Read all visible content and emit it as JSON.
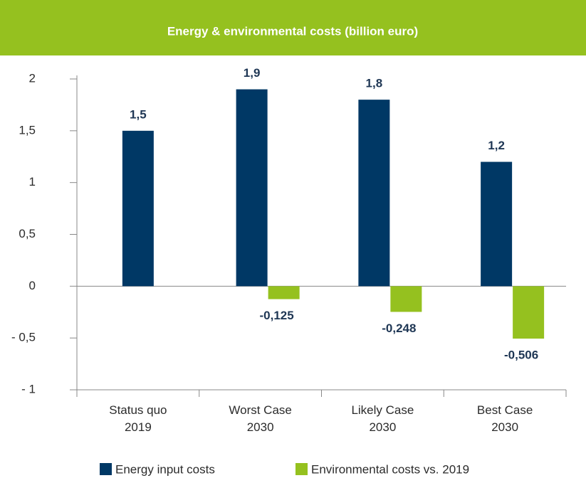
{
  "chart_data": {
    "type": "bar",
    "title": "Energy & environmental costs (billion euro)",
    "categories": [
      "Status quo\n2019",
      "Worst Case\n2030",
      "Likely Case\n2030",
      "Best Case\n2030"
    ],
    "series": [
      {
        "name": "Energy input costs",
        "color": "#003865",
        "values": [
          1.5,
          1.9,
          1.8,
          1.2
        ],
        "value_labels": [
          "1,5",
          "1,9",
          "1,8",
          "1,2"
        ]
      },
      {
        "name": "Environmental costs vs. 2019",
        "color": "#95c11f",
        "values": [
          null,
          -0.125,
          -0.248,
          -0.506
        ],
        "value_labels": [
          null,
          "-0,125",
          "-0,248",
          "-0,506"
        ]
      }
    ],
    "ylim": [
      -1,
      2
    ],
    "yticks": [
      {
        "value": -1,
        "label": "- 1"
      },
      {
        "value": -0.5,
        "label": "- 0,5"
      },
      0,
      {
        "value": 0.5,
        "label": "0,5"
      },
      1,
      {
        "value": 1.5,
        "label": "1,5"
      },
      2
    ],
    "header_color": "#95c11f"
  }
}
